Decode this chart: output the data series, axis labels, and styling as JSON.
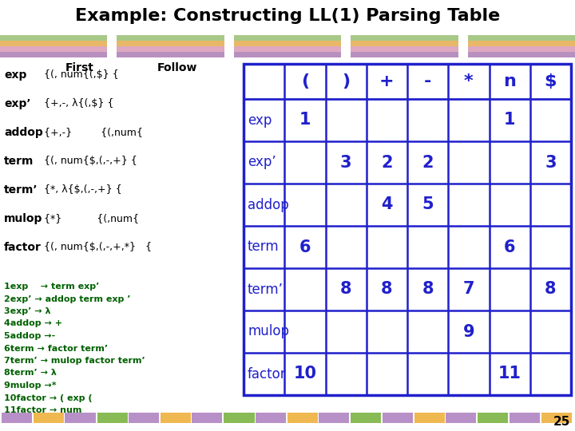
{
  "title": "Example: Constructing LL(1) Parsing Table",
  "background_color": "#ffffff",
  "left_text_color": "#006000",
  "table_text_color": "#2020cc",
  "table_border_color": "#2020cc",
  "grammar_rules": [
    "1exp    → term exp’",
    "2exp’ → addop term exp ’",
    "3exp’ → λ",
    "4addop → +",
    "5addop →-",
    "6term → factor term’",
    "7term’ → mulop factor term’",
    "8term’ → λ",
    "9mulop →*",
    "10factor → ( exp (",
    "11factor → num"
  ],
  "table_col_headers": [
    "",
    "(",
    ")",
    "+",
    "-",
    "*",
    "n",
    "$"
  ],
  "table_rows": [
    [
      "exp",
      "1",
      "",
      "",
      "",
      "",
      "1",
      ""
    ],
    [
      "exp’",
      "",
      "3",
      "2",
      "2",
      "",
      "",
      "3"
    ],
    [
      "addop",
      "",
      "",
      "4",
      "5",
      "",
      "",
      ""
    ],
    [
      "term",
      "6",
      "",
      "",
      "",
      "",
      "6",
      ""
    ],
    [
      "term’",
      "",
      "8",
      "8",
      "8",
      "7",
      "",
      "8"
    ],
    [
      "mulop",
      "",
      "",
      "",
      "",
      "9",
      "",
      ""
    ],
    [
      "factor",
      "10",
      "",
      "",
      "",
      "",
      "11",
      ""
    ]
  ],
  "page_number": "25",
  "bar_seg_colors": [
    [
      "#b8d0a0",
      "#e8b870",
      "#d8a8c0",
      "#c090b8"
    ],
    [
      "#b8d0a0",
      "#e8b870",
      "#d8a8c0",
      "#c090b8"
    ],
    [
      "#b8d0a0",
      "#e8b870",
      "#d8a8c0",
      "#c090b8"
    ],
    [
      "#b8d0a0",
      "#e8b870",
      "#d8a8c0",
      "#c090b8"
    ],
    [
      "#b8d0a0",
      "#e8b870",
      "#d8a8c0",
      "#c090b8"
    ]
  ]
}
